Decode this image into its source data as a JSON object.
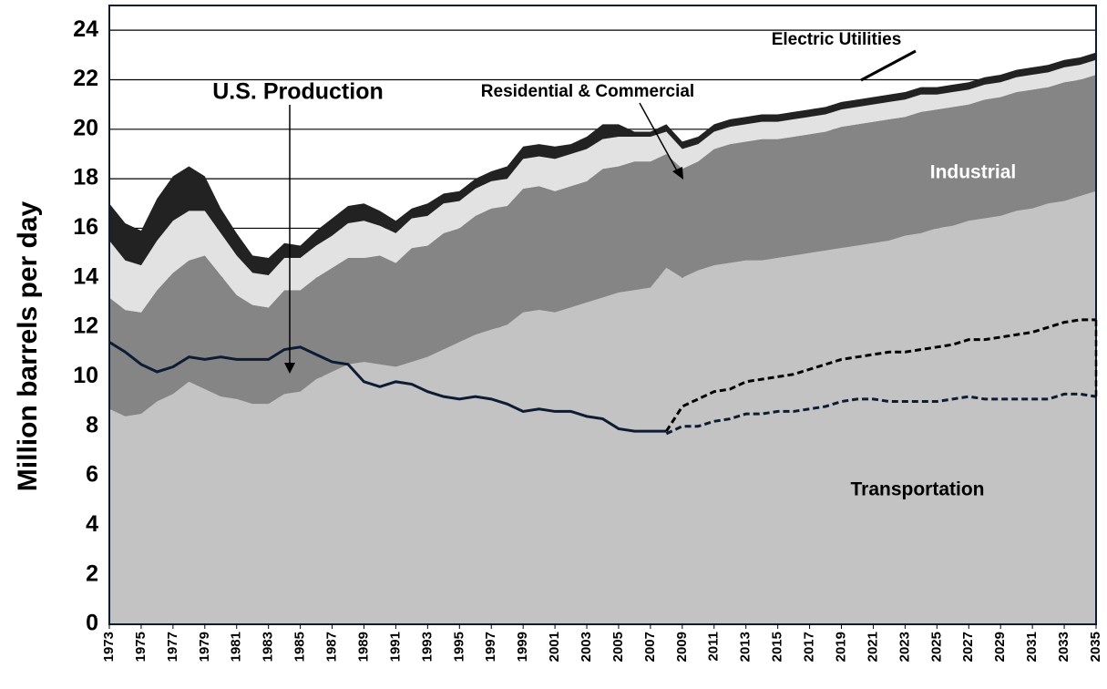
{
  "chart_data": {
    "type": "stacked_area",
    "y_label": "Million barrels per day",
    "x": [
      1973,
      1974,
      1975,
      1976,
      1977,
      1978,
      1979,
      1980,
      1981,
      1982,
      1983,
      1984,
      1985,
      1986,
      1987,
      1988,
      1989,
      1990,
      1991,
      1992,
      1993,
      1994,
      1995,
      1996,
      1997,
      1998,
      1999,
      2000,
      2001,
      2002,
      2003,
      2004,
      2005,
      2006,
      2007,
      2008,
      2009,
      2010,
      2011,
      2012,
      2013,
      2014,
      2015,
      2016,
      2017,
      2018,
      2019,
      2020,
      2021,
      2022,
      2023,
      2024,
      2025,
      2026,
      2027,
      2028,
      2029,
      2030,
      2031,
      2032,
      2033,
      2034,
      2035
    ],
    "xlim": [
      1973,
      2035
    ],
    "xticks": [
      1973,
      1975,
      1977,
      1979,
      1981,
      1983,
      1985,
      1987,
      1989,
      1991,
      1993,
      1995,
      1997,
      1999,
      2001,
      2003,
      2005,
      2007,
      2009,
      2011,
      2013,
      2015,
      2017,
      2019,
      2021,
      2023,
      2025,
      2027,
      2029,
      2031,
      2033,
      2035
    ],
    "ylim": [
      0,
      25
    ],
    "yticks": [
      0,
      2,
      4,
      6,
      8,
      10,
      12,
      14,
      16,
      18,
      20,
      22,
      24
    ],
    "grid": true,
    "series": [
      {
        "name": "Transportation",
        "color": "#c3c3c3",
        "label_color": "#000000",
        "values": [
          8.7,
          8.4,
          8.5,
          9.0,
          9.3,
          9.8,
          9.5,
          9.2,
          9.1,
          8.9,
          8.9,
          9.3,
          9.4,
          9.9,
          10.2,
          10.5,
          10.6,
          10.5,
          10.4,
          10.6,
          10.8,
          11.1,
          11.4,
          11.7,
          11.9,
          12.1,
          12.6,
          12.7,
          12.6,
          12.8,
          13.0,
          13.2,
          13.4,
          13.5,
          13.6,
          14.4,
          14.0,
          14.3,
          14.5,
          14.6,
          14.7,
          14.7,
          14.8,
          14.9,
          15.0,
          15.1,
          15.2,
          15.3,
          15.4,
          15.5,
          15.7,
          15.8,
          16.0,
          16.1,
          16.3,
          16.4,
          16.5,
          16.7,
          16.8,
          17.0,
          17.1,
          17.3,
          17.5
        ]
      },
      {
        "name": "Industrial",
        "color": "#858585",
        "label_color": "#ffffff",
        "values": [
          4.5,
          4.3,
          4.1,
          4.5,
          4.9,
          4.9,
          5.4,
          4.9,
          4.2,
          4.0,
          3.9,
          4.2,
          4.1,
          4.1,
          4.2,
          4.3,
          4.2,
          4.4,
          4.2,
          4.6,
          4.5,
          4.7,
          4.6,
          4.8,
          4.9,
          4.8,
          5.0,
          5.0,
          4.9,
          4.9,
          4.9,
          5.2,
          5.1,
          5.2,
          5.1,
          4.6,
          4.4,
          4.4,
          4.7,
          4.8,
          4.8,
          4.9,
          4.8,
          4.8,
          4.8,
          4.8,
          4.9,
          4.9,
          4.9,
          4.9,
          4.8,
          4.9,
          4.8,
          4.8,
          4.7,
          4.8,
          4.8,
          4.8,
          4.8,
          4.7,
          4.8,
          4.7,
          4.7
        ]
      },
      {
        "name": "Residential & Commercial",
        "color": "#e2e2e2",
        "label_color": "#000000",
        "values": [
          2.3,
          2.0,
          1.9,
          2.0,
          2.1,
          2.0,
          1.8,
          1.7,
          1.6,
          1.3,
          1.3,
          1.3,
          1.3,
          1.3,
          1.3,
          1.4,
          1.5,
          1.2,
          1.2,
          1.2,
          1.2,
          1.2,
          1.1,
          1.1,
          1.1,
          1.1,
          1.2,
          1.2,
          1.3,
          1.3,
          1.3,
          1.2,
          1.2,
          1.0,
          1.0,
          0.9,
          0.8,
          0.7,
          0.7,
          0.7,
          0.7,
          0.7,
          0.7,
          0.7,
          0.7,
          0.7,
          0.7,
          0.7,
          0.7,
          0.7,
          0.7,
          0.7,
          0.6,
          0.6,
          0.6,
          0.6,
          0.6,
          0.6,
          0.6,
          0.6,
          0.6,
          0.6,
          0.6
        ]
      },
      {
        "name": "Electric Utilities",
        "color": "#222222",
        "label_color": "#000000",
        "values": [
          1.5,
          1.5,
          1.4,
          1.7,
          1.8,
          1.8,
          1.4,
          1.0,
          0.9,
          0.7,
          0.7,
          0.6,
          0.5,
          0.6,
          0.7,
          0.7,
          0.7,
          0.6,
          0.5,
          0.4,
          0.5,
          0.4,
          0.4,
          0.4,
          0.4,
          0.5,
          0.5,
          0.5,
          0.5,
          0.4,
          0.5,
          0.6,
          0.5,
          0.2,
          0.2,
          0.3,
          0.3,
          0.3,
          0.3,
          0.3,
          0.3,
          0.3,
          0.3,
          0.3,
          0.3,
          0.3,
          0.3,
          0.3,
          0.3,
          0.3,
          0.3,
          0.3,
          0.3,
          0.3,
          0.3,
          0.3,
          0.3,
          0.3,
          0.3,
          0.3,
          0.3,
          0.3,
          0.3
        ]
      }
    ],
    "lines": [
      {
        "name": "U.S. Production",
        "color": "#0d1b33",
        "dashed": false,
        "values": [
          11.4,
          11.0,
          10.5,
          10.2,
          10.4,
          10.8,
          10.7,
          10.8,
          10.7,
          10.7,
          10.7,
          11.1,
          11.2,
          10.9,
          10.6,
          10.5,
          9.8,
          9.6,
          9.8,
          9.7,
          9.4,
          9.2,
          9.1,
          9.2,
          9.1,
          8.9,
          8.6,
          8.7,
          8.6,
          8.6,
          8.4,
          8.3,
          7.9,
          7.8,
          7.8,
          7.8,
          null,
          null,
          null,
          null,
          null,
          null,
          null,
          null,
          null,
          null,
          null,
          null,
          null,
          null,
          null,
          null,
          null,
          null,
          null,
          null,
          null,
          null,
          null,
          null,
          null,
          null,
          null
        ]
      },
      {
        "color": "#000000",
        "dashed": true,
        "values": [
          null,
          null,
          null,
          null,
          null,
          null,
          null,
          null,
          null,
          null,
          null,
          null,
          null,
          null,
          null,
          null,
          null,
          null,
          null,
          null,
          null,
          null,
          null,
          null,
          null,
          null,
          null,
          null,
          null,
          null,
          null,
          null,
          null,
          null,
          null,
          7.8,
          8.8,
          9.1,
          9.4,
          9.5,
          9.8,
          9.9,
          10.0,
          10.1,
          10.3,
          10.5,
          10.7,
          10.8,
          10.9,
          11.0,
          11.0,
          11.1,
          11.2,
          11.3,
          11.5,
          11.5,
          11.6,
          11.7,
          11.8,
          12.0,
          12.2,
          12.3,
          12.3
        ]
      },
      {
        "color": "#0d1b33",
        "dashed": true,
        "values": [
          null,
          null,
          null,
          null,
          null,
          null,
          null,
          null,
          null,
          null,
          null,
          null,
          null,
          null,
          null,
          null,
          null,
          null,
          null,
          null,
          null,
          null,
          null,
          null,
          null,
          null,
          null,
          null,
          null,
          null,
          null,
          null,
          null,
          null,
          null,
          7.7,
          8.0,
          8.0,
          8.2,
          8.3,
          8.5,
          8.5,
          8.6,
          8.6,
          8.7,
          8.8,
          9.0,
          9.1,
          9.1,
          9.0,
          9.0,
          9.0,
          9.0,
          9.1,
          9.2,
          9.1,
          9.1,
          9.1,
          9.1,
          9.1,
          9.3,
          9.3,
          9.2
        ]
      }
    ]
  }
}
